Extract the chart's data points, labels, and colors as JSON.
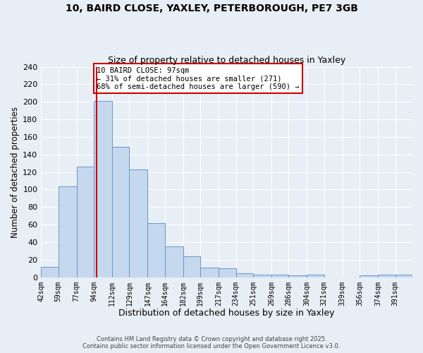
{
  "title1": "10, BAIRD CLOSE, YAXLEY, PETERBOROUGH, PE7 3GB",
  "title2": "Size of property relative to detached houses in Yaxley",
  "xlabel": "Distribution of detached houses by size in Yaxley",
  "ylabel": "Number of detached properties",
  "bin_labels": [
    "42sqm",
    "59sqm",
    "77sqm",
    "94sqm",
    "112sqm",
    "129sqm",
    "147sqm",
    "164sqm",
    "182sqm",
    "199sqm",
    "217sqm",
    "234sqm",
    "251sqm",
    "269sqm",
    "286sqm",
    "304sqm",
    "321sqm",
    "339sqm",
    "356sqm",
    "374sqm",
    "391sqm"
  ],
  "bar_heights": [
    12,
    104,
    126,
    201,
    149,
    123,
    62,
    35,
    24,
    11,
    10,
    5,
    3,
    3,
    2,
    3,
    0,
    0,
    2,
    3,
    3
  ],
  "bin_edges": [
    42,
    59,
    77,
    94,
    112,
    129,
    147,
    164,
    182,
    199,
    217,
    234,
    251,
    269,
    286,
    304,
    321,
    339,
    356,
    374,
    391,
    408
  ],
  "bar_color": "#c5d8ed",
  "bar_edge_color": "#6699cc",
  "vline_x": 97,
  "vline_color": "#cc0000",
  "ylim": [
    0,
    240
  ],
  "yticks": [
    0,
    20,
    40,
    60,
    80,
    100,
    120,
    140,
    160,
    180,
    200,
    220,
    240
  ],
  "annotation_title": "10 BAIRD CLOSE: 97sqm",
  "annotation_line1": "← 31% of detached houses are smaller (271)",
  "annotation_line2": "68% of semi-detached houses are larger (590) →",
  "annotation_box_color": "#ffffff",
  "annotation_box_edge": "#cc0000",
  "bg_color": "#e8eef5",
  "grid_color": "#ffffff",
  "footer1": "Contains HM Land Registry data © Crown copyright and database right 2025.",
  "footer2": "Contains public sector information licensed under the Open Government Licence v3.0."
}
